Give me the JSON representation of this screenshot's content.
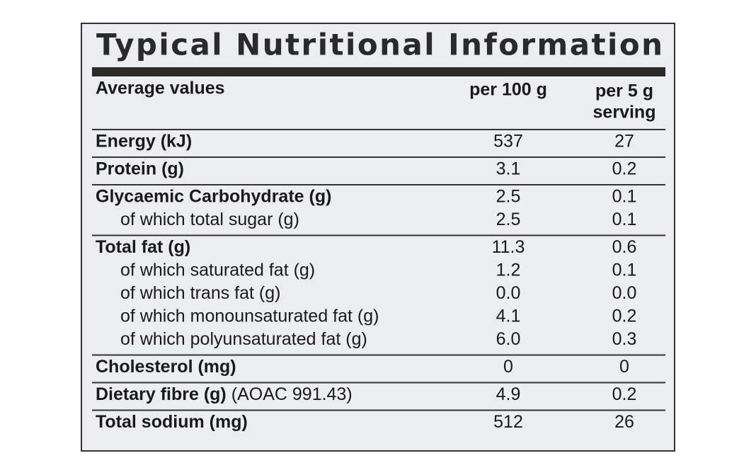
{
  "title": "Typical Nutritional Information",
  "header": {
    "label": "Average values",
    "per_100g": "per 100 g",
    "per_serving": [
      "per 5 g",
      "serving"
    ]
  },
  "groups": [
    {
      "rows": [
        {
          "label": "Energy (kJ)",
          "per_100g": "537",
          "per_serving": "27"
        }
      ]
    },
    {
      "rows": [
        {
          "label": "Protein (g)",
          "per_100g": "3.1",
          "per_serving": "0.2"
        }
      ]
    },
    {
      "rows": [
        {
          "label": "Glycaemic Carbohydrate (g)",
          "per_100g": "2.5",
          "per_serving": "0.1"
        },
        {
          "label": "of which total sugar (g)",
          "per_100g": "2.5",
          "per_serving": "0.1"
        }
      ]
    },
    {
      "rows": [
        {
          "label": "Total fat (g)",
          "per_100g": "11.3",
          "per_serving": "0.6"
        },
        {
          "label": "of which saturated fat (g)",
          "per_100g": "1.2",
          "per_serving": "0.1"
        },
        {
          "label": "of which trans fat (g)",
          "per_100g": "0.0",
          "per_serving": "0.0"
        },
        {
          "label": "of which monounsaturated fat (g)",
          "per_100g": "4.1",
          "per_serving": "0.2"
        },
        {
          "label": "of which polyunsaturated fat (g)",
          "per_100g": "6.0",
          "per_serving": "0.3"
        }
      ]
    },
    {
      "rows": [
        {
          "label": "Cholesterol (mg)",
          "per_100g": "0",
          "per_serving": "0"
        }
      ]
    },
    {
      "rows": [
        {
          "label": "Dietary fibre (g)",
          "note": "(AOAC 991.43)",
          "per_100g": "4.9",
          "per_serving": "0.2"
        }
      ]
    },
    {
      "rows": [
        {
          "label": "Total sodium (mg)",
          "per_100g": "512",
          "per_serving": "26"
        }
      ]
    }
  ]
}
